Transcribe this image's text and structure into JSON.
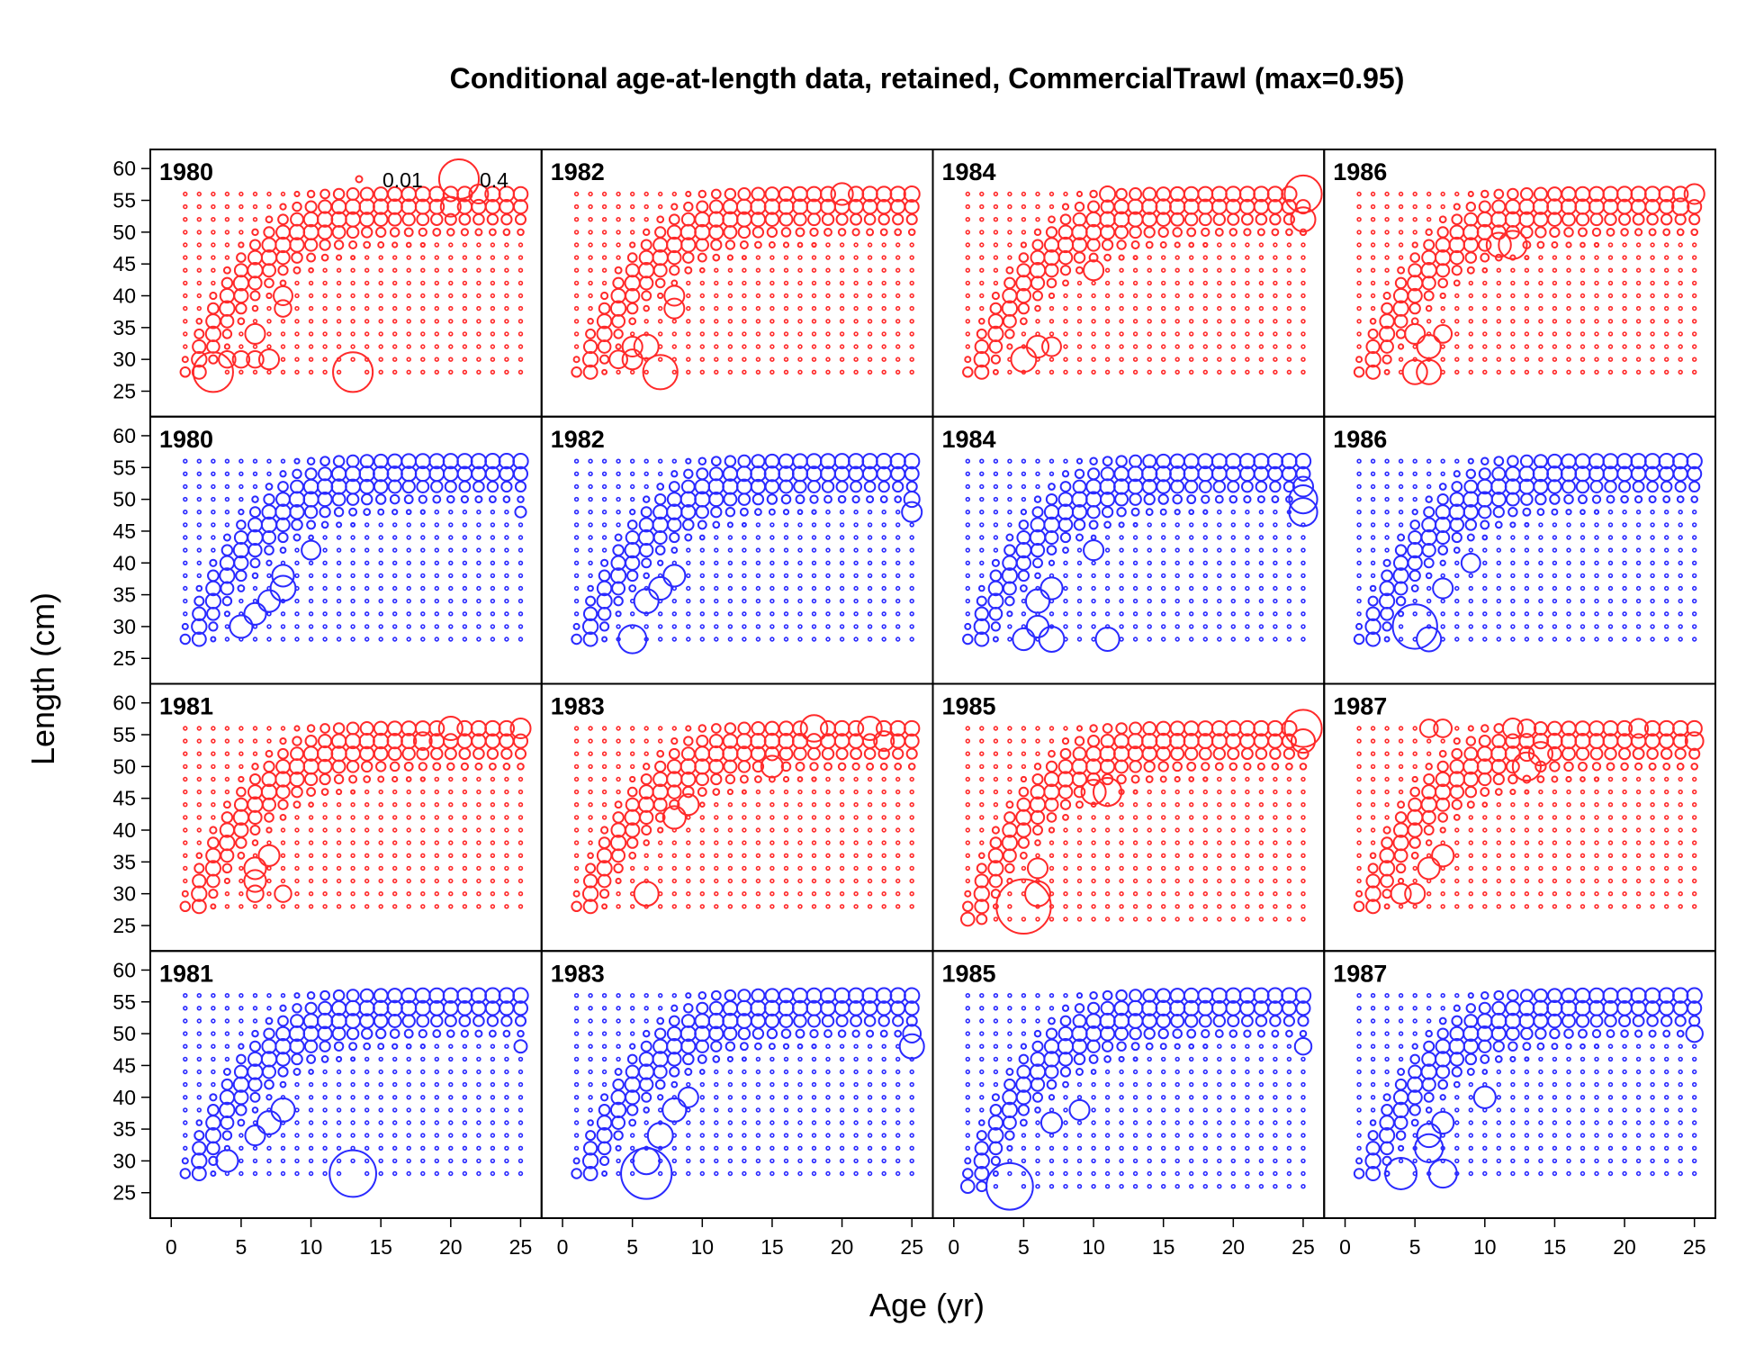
{
  "chart_data": {
    "type": "scatter",
    "subtype": "bubble-panels",
    "title": "Conditional age-at-length data, retained, CommercialTrawl (max=0.95)",
    "xlabel": "Age (yr)",
    "ylabel": "Length (cm)",
    "xlim": [
      -1.5,
      26.5
    ],
    "ylim": [
      21,
      63
    ],
    "x_ticks": [
      0,
      5,
      10,
      15,
      20,
      25
    ],
    "y_ticks": [
      25,
      30,
      35,
      40,
      45,
      50,
      55,
      60
    ],
    "grid": false,
    "legend": {
      "placement": "top-right of first panel",
      "entries": [
        {
          "label": "0.01",
          "value": 0.01
        },
        {
          "label": "0.4",
          "value": 0.4
        }
      ]
    },
    "max_value": 0.95,
    "colors": {
      "observed": "#ff2a2a",
      "expected": "#2a2aff",
      "frame": "#000000"
    },
    "layout": {
      "rows": 4,
      "cols": 4
    },
    "panels": [
      {
        "year": "1980",
        "color": "red",
        "lmin": 28,
        "lmax": 56,
        "peaks": [
          [
            3,
            28,
            0.4
          ],
          [
            13,
            28,
            0.4
          ],
          [
            4,
            30,
            0.07
          ],
          [
            5,
            30,
            0.07
          ],
          [
            6,
            30,
            0.07
          ],
          [
            7,
            30,
            0.1
          ],
          [
            6,
            34,
            0.1
          ],
          [
            8,
            40,
            0.09
          ],
          [
            8,
            38,
            0.07
          ],
          [
            20,
            54,
            0.1
          ],
          [
            22,
            56,
            0.09
          ],
          [
            25,
            56,
            0.05
          ]
        ]
      },
      {
        "year": "1982",
        "color": "red",
        "lmin": 28,
        "lmax": 56,
        "peaks": [
          [
            7,
            28,
            0.3
          ],
          [
            6,
            32,
            0.15
          ],
          [
            4,
            30,
            0.08
          ],
          [
            5,
            30,
            0.1
          ],
          [
            5,
            32,
            0.1
          ],
          [
            8,
            40,
            0.1
          ],
          [
            8,
            38,
            0.1
          ],
          [
            20,
            56,
            0.12
          ],
          [
            25,
            56,
            0.06
          ]
        ]
      },
      {
        "year": "1984",
        "color": "red",
        "lmin": 28,
        "lmax": 56,
        "peaks": [
          [
            5,
            30,
            0.16
          ],
          [
            6,
            32,
            0.12
          ],
          [
            7,
            32,
            0.09
          ],
          [
            10,
            44,
            0.1
          ],
          [
            25,
            56,
            0.35
          ],
          [
            25,
            52,
            0.15
          ],
          [
            11,
            56,
            0.06
          ]
        ]
      },
      {
        "year": "1986",
        "color": "red",
        "lmin": 28,
        "lmax": 56,
        "peaks": [
          [
            5,
            28,
            0.15
          ],
          [
            6,
            28,
            0.15
          ],
          [
            6,
            32,
            0.14
          ],
          [
            5,
            34,
            0.1
          ],
          [
            7,
            34,
            0.08
          ],
          [
            12,
            48,
            0.2
          ],
          [
            11,
            48,
            0.15
          ],
          [
            25,
            56,
            0.1
          ],
          [
            24,
            54,
            0.07
          ]
        ]
      },
      {
        "year": "1980",
        "color": "blue",
        "lmin": 28,
        "lmax": 56,
        "peaks": [
          [
            5,
            30,
            0.13
          ],
          [
            6,
            32,
            0.12
          ],
          [
            7,
            34,
            0.12
          ],
          [
            8,
            36,
            0.16
          ],
          [
            8,
            38,
            0.12
          ],
          [
            10,
            42,
            0.09
          ],
          [
            25,
            48,
            0.03
          ]
        ]
      },
      {
        "year": "1982",
        "color": "blue",
        "lmin": 28,
        "lmax": 56,
        "peaks": [
          [
            5,
            28,
            0.2
          ],
          [
            6,
            34,
            0.15
          ],
          [
            7,
            36,
            0.13
          ],
          [
            8,
            38,
            0.12
          ],
          [
            25,
            48,
            0.1
          ],
          [
            25,
            50,
            0.06
          ]
        ]
      },
      {
        "year": "1984",
        "color": "blue",
        "lmin": 28,
        "lmax": 56,
        "peaks": [
          [
            5,
            28,
            0.12
          ],
          [
            6,
            30,
            0.12
          ],
          [
            7,
            28,
            0.16
          ],
          [
            6,
            34,
            0.14
          ],
          [
            7,
            36,
            0.12
          ],
          [
            10,
            42,
            0.1
          ],
          [
            11,
            28,
            0.14
          ],
          [
            25,
            48,
            0.2
          ],
          [
            25,
            50,
            0.2
          ],
          [
            25,
            52,
            0.1
          ]
        ]
      },
      {
        "year": "1986",
        "color": "blue",
        "lmin": 28,
        "lmax": 56,
        "peaks": [
          [
            5,
            30,
            0.5
          ],
          [
            6,
            28,
            0.15
          ],
          [
            7,
            36,
            0.1
          ],
          [
            9,
            40,
            0.09
          ]
        ]
      },
      {
        "year": "1981",
        "color": "red",
        "lmin": 28,
        "lmax": 56,
        "peaks": [
          [
            6,
            32,
            0.12
          ],
          [
            6,
            34,
            0.12
          ],
          [
            7,
            36,
            0.11
          ],
          [
            6,
            30,
            0.07
          ],
          [
            8,
            30,
            0.07
          ],
          [
            20,
            56,
            0.14
          ],
          [
            25,
            56,
            0.1
          ],
          [
            18,
            54,
            0.08
          ]
        ]
      },
      {
        "year": "1983",
        "color": "red",
        "lmin": 28,
        "lmax": 56,
        "peaks": [
          [
            6,
            30,
            0.15
          ],
          [
            8,
            42,
            0.13
          ],
          [
            9,
            44,
            0.11
          ],
          [
            18,
            56,
            0.18
          ],
          [
            22,
            56,
            0.14
          ],
          [
            15,
            50,
            0.12
          ],
          [
            23,
            54,
            0.1
          ]
        ]
      },
      {
        "year": "1985",
        "color": "red",
        "lmin": 26,
        "lmax": 56,
        "peaks": [
          [
            5,
            28,
            0.75
          ],
          [
            6,
            30,
            0.16
          ],
          [
            11,
            46,
            0.2
          ],
          [
            10,
            46,
            0.15
          ],
          [
            25,
            56,
            0.35
          ],
          [
            25,
            54,
            0.14
          ],
          [
            6,
            34,
            0.1
          ]
        ]
      },
      {
        "year": "1987",
        "color": "red",
        "lmin": 28,
        "lmax": 56,
        "peaks": [
          [
            4,
            30,
            0.1
          ],
          [
            5,
            30,
            0.1
          ],
          [
            6,
            34,
            0.12
          ],
          [
            7,
            36,
            0.12
          ],
          [
            13,
            50,
            0.2
          ],
          [
            14,
            52,
            0.14
          ],
          [
            6,
            56,
            0.08
          ],
          [
            7,
            56,
            0.08
          ],
          [
            12,
            56,
            0.1
          ],
          [
            13,
            56,
            0.08
          ],
          [
            21,
            56,
            0.09
          ],
          [
            25,
            54,
            0.08
          ]
        ]
      },
      {
        "year": "1981",
        "color": "blue",
        "lmin": 28,
        "lmax": 56,
        "peaks": [
          [
            4,
            30,
            0.12
          ],
          [
            13,
            28,
            0.55
          ],
          [
            7,
            36,
            0.14
          ],
          [
            8,
            38,
            0.14
          ],
          [
            6,
            34,
            0.1
          ],
          [
            25,
            48,
            0.04
          ]
        ]
      },
      {
        "year": "1983",
        "color": "blue",
        "lmin": 28,
        "lmax": 56,
        "peaks": [
          [
            6,
            28,
            0.65
          ],
          [
            6,
            30,
            0.18
          ],
          [
            7,
            34,
            0.16
          ],
          [
            8,
            38,
            0.14
          ],
          [
            9,
            40,
            0.1
          ],
          [
            25,
            48,
            0.15
          ],
          [
            25,
            50,
            0.08
          ]
        ]
      },
      {
        "year": "1985",
        "color": "blue",
        "lmin": 26,
        "lmax": 56,
        "peaks": [
          [
            4,
            26,
            0.55
          ],
          [
            7,
            36,
            0.11
          ],
          [
            9,
            38,
            0.1
          ],
          [
            25,
            48,
            0.07
          ]
        ]
      },
      {
        "year": "1987",
        "color": "blue",
        "lmin": 28,
        "lmax": 56,
        "peaks": [
          [
            4,
            28,
            0.25
          ],
          [
            7,
            28,
            0.2
          ],
          [
            6,
            32,
            0.2
          ],
          [
            6,
            34,
            0.14
          ],
          [
            7,
            36,
            0.12
          ],
          [
            10,
            40,
            0.12
          ],
          [
            25,
            50,
            0.07
          ]
        ]
      }
    ]
  }
}
